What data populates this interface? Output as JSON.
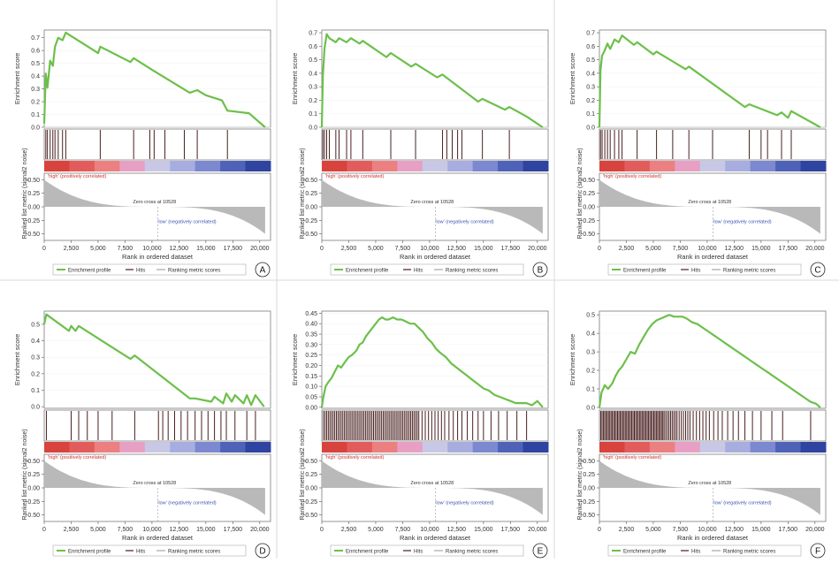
{
  "labels": {
    "es_axis": "Enrichment score",
    "rank_axis": "Ranked list metric (signal2 noise)",
    "x_axis": "Rank in ordered dataset",
    "high": "'high' (positively correlated)",
    "low": "'low' (negatively correlated)",
    "zero_cross": "Zero cross at 10528",
    "legend_enrichment": "Enrichment profile",
    "legend_hits": "Hits",
    "legend_ranking": "Ranking metric scores"
  },
  "colors": {
    "enrichment_line": "#6cc04a",
    "hits": "#4a2020",
    "metric_fill": "#b9b9b9",
    "frame": "#7a7a7a",
    "heat": [
      "#d8433d",
      "#e35c5c",
      "#ec7f80",
      "#e7a0c4",
      "#c8c8e6",
      "#a7addf",
      "#7c88cf",
      "#4e62b7",
      "#2f43a0"
    ]
  },
  "x_ticks": [
    "0",
    "2,500",
    "5,000",
    "7,500",
    "10,000",
    "12,500",
    "15,000",
    "17,500",
    "20,000"
  ],
  "rank_ticks": [
    "0.50",
    "0.25",
    "0.00",
    "-0.25",
    "-0.50"
  ],
  "chart_data": [
    {
      "panel": "A",
      "type": "line",
      "title": "",
      "xlabel": "Rank in ordered dataset",
      "ylabel": "Enrichment score",
      "xlim": [
        0,
        21000
      ],
      "ylim": [
        0,
        0.76
      ],
      "y_ticks": [
        "0.0",
        "0.1",
        "0.2",
        "0.3",
        "0.4",
        "0.5",
        "0.6",
        "0.7"
      ],
      "es_x": [
        0,
        150,
        300,
        550,
        800,
        1000,
        1300,
        1700,
        2000,
        5000,
        5200,
        8000,
        8300,
        10000,
        13500,
        14200,
        15000,
        16500,
        17000,
        19000,
        20500
      ],
      "es_y": [
        0.03,
        0.42,
        0.31,
        0.52,
        0.48,
        0.63,
        0.7,
        0.68,
        0.74,
        0.58,
        0.63,
        0.51,
        0.54,
        0.45,
        0.27,
        0.29,
        0.25,
        0.21,
        0.13,
        0.11,
        0.0
      ],
      "hits": [
        150,
        300,
        550,
        800,
        1000,
        1300,
        1700,
        2000,
        5200,
        8300,
        9800,
        10200,
        11200,
        13000,
        14200,
        17000
      ]
    },
    {
      "panel": "B",
      "type": "line",
      "title": "",
      "xlabel": "Rank in ordered dataset",
      "ylabel": "Enrichment score",
      "xlim": [
        0,
        21000
      ],
      "ylim": [
        0,
        0.72
      ],
      "y_ticks": [
        "0.0",
        "0.1",
        "0.2",
        "0.3",
        "0.4",
        "0.5",
        "0.6",
        "0.7"
      ],
      "es_x": [
        0,
        100,
        250,
        450,
        700,
        1300,
        1600,
        2300,
        2700,
        3500,
        3800,
        6000,
        6400,
        8300,
        8700,
        10700,
        11200,
        14500,
        14900,
        17000,
        17400,
        19000,
        20500
      ],
      "es_y": [
        0.0,
        0.38,
        0.58,
        0.69,
        0.66,
        0.63,
        0.66,
        0.63,
        0.66,
        0.62,
        0.64,
        0.52,
        0.55,
        0.45,
        0.47,
        0.37,
        0.39,
        0.19,
        0.21,
        0.13,
        0.15,
        0.08,
        0.0
      ],
      "hits": [
        100,
        250,
        450,
        700,
        1300,
        1600,
        2300,
        2700,
        3800,
        6400,
        8700,
        11200,
        11600,
        12100,
        12600,
        13000,
        14900,
        17400
      ]
    },
    {
      "panel": "C",
      "type": "line",
      "title": "",
      "xlabel": "Rank in ordered dataset",
      "ylabel": "Enrichment score",
      "xlim": [
        0,
        21000
      ],
      "ylim": [
        0,
        0.72
      ],
      "y_ticks": [
        "0.0",
        "0.1",
        "0.2",
        "0.3",
        "0.4",
        "0.5",
        "0.6",
        "0.7"
      ],
      "es_x": [
        0,
        100,
        250,
        500,
        750,
        1000,
        1400,
        1800,
        2100,
        3200,
        3500,
        5000,
        5300,
        8000,
        8300,
        13500,
        13900,
        16500,
        16900,
        17500,
        17800,
        20500
      ],
      "es_y": [
        0.0,
        0.42,
        0.53,
        0.57,
        0.62,
        0.58,
        0.65,
        0.63,
        0.68,
        0.61,
        0.63,
        0.54,
        0.56,
        0.43,
        0.45,
        0.15,
        0.17,
        0.09,
        0.11,
        0.07,
        0.12,
        0.0
      ],
      "hits": [
        100,
        250,
        500,
        750,
        1000,
        1400,
        1800,
        2100,
        3500,
        5300,
        6800,
        8300,
        10500,
        13900,
        15000,
        15600,
        16900,
        17800
      ]
    },
    {
      "panel": "D",
      "type": "line",
      "title": "",
      "xlabel": "Rank in ordered dataset",
      "ylabel": "Enrichment score",
      "xlim": [
        0,
        21000
      ],
      "ylim": [
        -0.01,
        0.58
      ],
      "y_ticks": [
        "0.0",
        "0.1",
        "0.2",
        "0.3",
        "0.4",
        "0.5"
      ],
      "es_x": [
        0,
        200,
        2300,
        2500,
        2900,
        3200,
        8000,
        8400,
        13500,
        14000,
        15500,
        15800,
        16600,
        16900,
        17400,
        17700,
        18500,
        18800,
        19200,
        19600,
        20400
      ],
      "es_y": [
        0.5,
        0.56,
        0.46,
        0.49,
        0.46,
        0.49,
        0.29,
        0.31,
        0.05,
        0.05,
        0.03,
        0.06,
        0.02,
        0.08,
        0.03,
        0.07,
        0.02,
        0.07,
        0.01,
        0.07,
        0.0
      ],
      "hits": [
        200,
        2500,
        3200,
        4000,
        5000,
        6300,
        8400,
        10600,
        11000,
        11500,
        12100,
        12700,
        13300,
        14000,
        14600,
        15200,
        15800,
        16400,
        16900,
        17700,
        18800,
        19600
      ]
    },
    {
      "panel": "E",
      "type": "line",
      "title": "",
      "xlabel": "Rank in ordered dataset",
      "ylabel": "Enrichment score",
      "xlim": [
        0,
        21000
      ],
      "ylim": [
        -0.005,
        0.46
      ],
      "y_ticks": [
        "0.00",
        "0.05",
        "0.10",
        "0.15",
        "0.20",
        "0.25",
        "0.30",
        "0.35",
        "0.40",
        "0.45"
      ],
      "es_x": [
        0,
        150,
        350,
        600,
        900,
        1200,
        1500,
        1800,
        2200,
        2500,
        2800,
        3200,
        3500,
        3800,
        4100,
        4400,
        4700,
        5000,
        5300,
        5600,
        5900,
        6200,
        6600,
        7000,
        7400,
        7800,
        8200,
        8600,
        9000,
        9400,
        9800,
        10200,
        10600,
        11000,
        11500,
        12000,
        12500,
        13000,
        13500,
        14000,
        14500,
        15000,
        15500,
        16000,
        16500,
        17000,
        17500,
        18000,
        18500,
        19000,
        19500,
        20000,
        20500
      ],
      "es_y": [
        0.0,
        0.05,
        0.1,
        0.12,
        0.14,
        0.17,
        0.2,
        0.19,
        0.22,
        0.24,
        0.25,
        0.27,
        0.3,
        0.31,
        0.34,
        0.36,
        0.38,
        0.4,
        0.42,
        0.43,
        0.42,
        0.42,
        0.43,
        0.42,
        0.42,
        0.41,
        0.4,
        0.4,
        0.38,
        0.36,
        0.33,
        0.31,
        0.28,
        0.26,
        0.24,
        0.21,
        0.19,
        0.17,
        0.15,
        0.13,
        0.11,
        0.09,
        0.08,
        0.06,
        0.05,
        0.04,
        0.03,
        0.02,
        0.02,
        0.02,
        0.01,
        0.03,
        0.0
      ],
      "hits": [
        150,
        300,
        450,
        600,
        750,
        900,
        1050,
        1200,
        1350,
        1500,
        1650,
        1800,
        1950,
        2100,
        2250,
        2400,
        2550,
        2700,
        2850,
        3000,
        3150,
        3300,
        3450,
        3600,
        3750,
        3900,
        4050,
        4200,
        4350,
        4500,
        4650,
        4800,
        4950,
        5100,
        5250,
        5400,
        5550,
        5700,
        5850,
        6000,
        6150,
        6300,
        6450,
        6600,
        6750,
        6900,
        7050,
        7200,
        7350,
        7500,
        7650,
        7800,
        7950,
        8100,
        8250,
        8400,
        8550,
        8700,
        8850,
        9000,
        9300,
        9600,
        9900,
        10200,
        10500,
        10800,
        11100,
        11400,
        11800,
        12200,
        12600,
        13000,
        13500,
        14000,
        14500,
        15000,
        15700,
        16400,
        17200,
        18100,
        19000
      ]
    },
    {
      "panel": "F",
      "type": "line",
      "title": "",
      "xlabel": "Rank in ordered dataset",
      "ylabel": "Enrichment score",
      "xlim": [
        0,
        21000
      ],
      "ylim": [
        -0.005,
        0.52
      ],
      "y_ticks": [
        "0.0",
        "0.1",
        "0.2",
        "0.3",
        "0.4",
        "0.5"
      ],
      "es_x": [
        0,
        200,
        500,
        800,
        1200,
        1500,
        1800,
        2100,
        2500,
        2900,
        3300,
        3700,
        4100,
        4500,
        4900,
        5300,
        5700,
        6100,
        6500,
        6900,
        7300,
        7700,
        8100,
        8600,
        9100,
        9600,
        10100,
        10600,
        11100,
        11600,
        12100,
        12600,
        13100,
        13600,
        14100,
        14600,
        15100,
        15600,
        16100,
        16600,
        17100,
        17600,
        18100,
        18600,
        19100,
        19600,
        20100,
        20500
      ],
      "es_y": [
        0.0,
        0.08,
        0.12,
        0.1,
        0.13,
        0.17,
        0.2,
        0.22,
        0.26,
        0.3,
        0.29,
        0.34,
        0.38,
        0.42,
        0.45,
        0.47,
        0.48,
        0.49,
        0.5,
        0.49,
        0.49,
        0.49,
        0.48,
        0.46,
        0.45,
        0.43,
        0.41,
        0.39,
        0.37,
        0.35,
        0.33,
        0.31,
        0.29,
        0.27,
        0.25,
        0.23,
        0.21,
        0.19,
        0.17,
        0.15,
        0.13,
        0.11,
        0.09,
        0.07,
        0.05,
        0.03,
        0.02,
        0.0
      ],
      "hits": [
        120,
        240,
        360,
        480,
        600,
        720,
        840,
        960,
        1080,
        1200,
        1320,
        1440,
        1560,
        1680,
        1800,
        1920,
        2040,
        2160,
        2280,
        2400,
        2520,
        2640,
        2760,
        2880,
        3000,
        3120,
        3240,
        3360,
        3480,
        3600,
        3720,
        3840,
        3960,
        4080,
        4200,
        4320,
        4440,
        4560,
        4680,
        4800,
        4920,
        5040,
        5160,
        5280,
        5400,
        5520,
        5640,
        5760,
        5880,
        6000,
        6150,
        6300,
        6450,
        6600,
        6750,
        6900,
        7050,
        7200,
        7400,
        7600,
        7800,
        8000,
        8200,
        8400,
        8700,
        9000,
        9300,
        9600,
        9900,
        10200,
        10600,
        11000,
        11400,
        11900,
        12400,
        12900,
        13500,
        14200,
        15000,
        16000,
        17000,
        19600
      ]
    }
  ]
}
